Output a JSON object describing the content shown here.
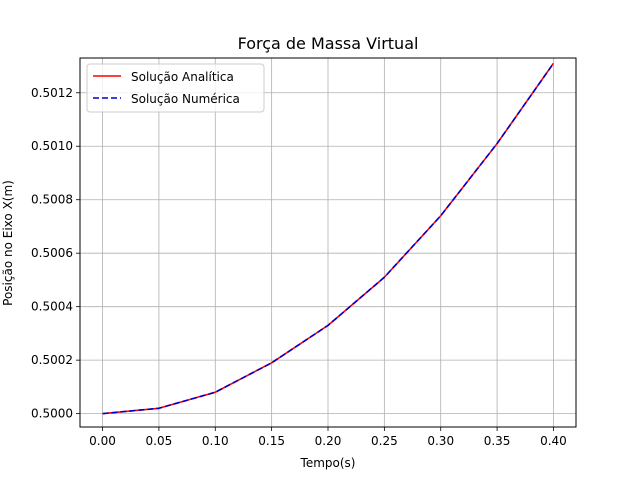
{
  "chart_data": {
    "type": "line",
    "title": "Força de Massa Virtual",
    "xlabel": "Tempo(s)",
    "ylabel": "Posição no Eixo X(m)",
    "xlim": [
      -0.02,
      0.42
    ],
    "ylim": [
      0.49995,
      0.50133
    ],
    "xticks": [
      0.0,
      0.05,
      0.1,
      0.15,
      0.2,
      0.25,
      0.3,
      0.35,
      0.4
    ],
    "xtick_labels": [
      "0.00",
      "0.05",
      "0.10",
      "0.15",
      "0.20",
      "0.25",
      "0.30",
      "0.35",
      "0.40"
    ],
    "yticks": [
      0.5,
      0.5002,
      0.5004,
      0.5006,
      0.5008,
      0.501,
      0.5012
    ],
    "ytick_labels": [
      "0.5000",
      "0.5002",
      "0.5004",
      "0.5006",
      "0.5008",
      "0.5010",
      "0.5012"
    ],
    "grid": true,
    "legend_position": "top-left",
    "series": [
      {
        "name": "Solução Analítica",
        "color": "#ff0000",
        "style": "solid",
        "x": [
          0.0,
          0.05,
          0.1,
          0.15,
          0.2,
          0.25,
          0.3,
          0.35,
          0.4
        ],
        "y": [
          0.5,
          0.50002,
          0.50008,
          0.50019,
          0.50033,
          0.50051,
          0.50074,
          0.50101,
          0.50131
        ]
      },
      {
        "name": "Solução Numérica",
        "color": "#0000cc",
        "style": "dashed",
        "x": [
          0.0,
          0.05,
          0.1,
          0.15,
          0.2,
          0.25,
          0.3,
          0.35,
          0.4
        ],
        "y": [
          0.5,
          0.50002,
          0.50008,
          0.50019,
          0.50033,
          0.50051,
          0.50074,
          0.50101,
          0.50131
        ]
      }
    ]
  }
}
